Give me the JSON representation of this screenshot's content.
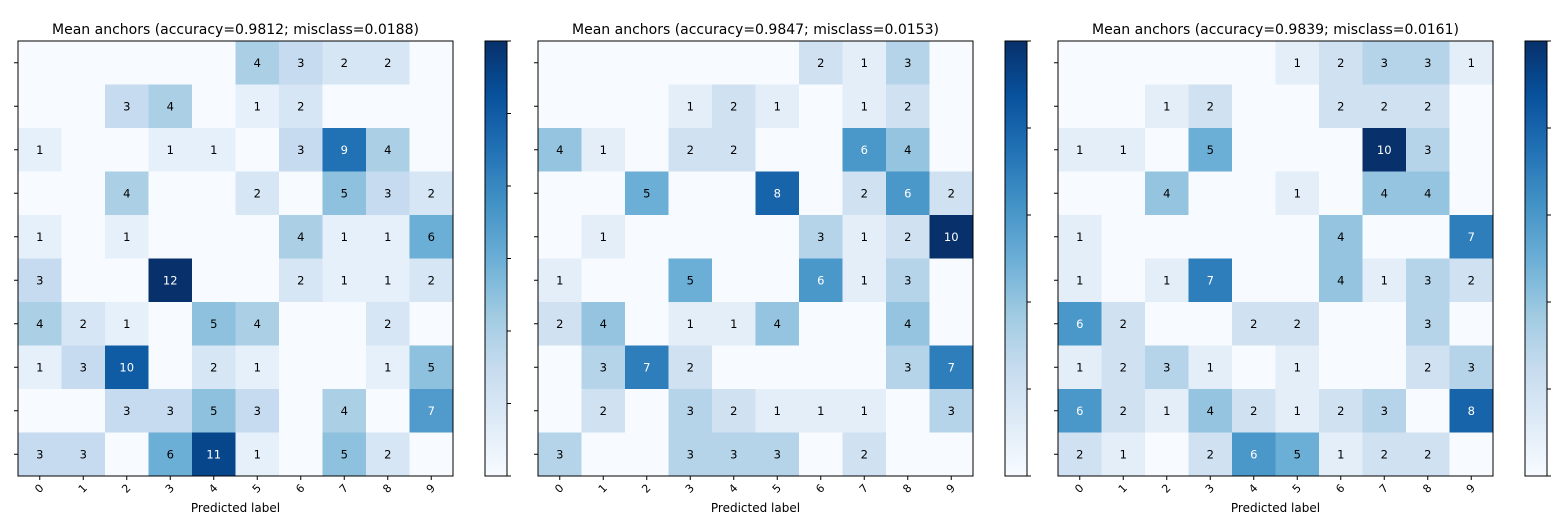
{
  "chart_data": [
    {
      "type": "heatmap",
      "title": "Mean anchors (accuracy=0.9812; misclass=0.0188)",
      "xlabel": "Predicted label",
      "ylabel": "",
      "x_ticks": [
        "0",
        "1",
        "2",
        "3",
        "4",
        "5",
        "6",
        "7",
        "8",
        "9"
      ],
      "y_ticks": [
        "",
        "",
        "",
        "",
        "",
        "",
        "",
        "",
        "",
        ""
      ],
      "colormap": "Blues",
      "grid": false,
      "values": [
        [
          0,
          0,
          0,
          0,
          0,
          4,
          3,
          2,
          2,
          0
        ],
        [
          0,
          0,
          3,
          4,
          0,
          1,
          2,
          0,
          0,
          0
        ],
        [
          1,
          0,
          0,
          1,
          1,
          0,
          3,
          9,
          4,
          0
        ],
        [
          0,
          0,
          4,
          0,
          0,
          2,
          0,
          5,
          3,
          2
        ],
        [
          1,
          0,
          1,
          0,
          0,
          0,
          4,
          1,
          1,
          6
        ],
        [
          3,
          0,
          0,
          12,
          0,
          0,
          2,
          1,
          1,
          2
        ],
        [
          4,
          2,
          1,
          0,
          5,
          4,
          0,
          0,
          2,
          0
        ],
        [
          1,
          3,
          10,
          0,
          2,
          1,
          0,
          0,
          1,
          5
        ],
        [
          0,
          0,
          3,
          3,
          5,
          3,
          0,
          4,
          0,
          7
        ],
        [
          3,
          3,
          0,
          6,
          11,
          1,
          0,
          5,
          2,
          0
        ]
      ]
    },
    {
      "type": "heatmap",
      "title": "Mean anchors (accuracy=0.9847; misclass=0.0153)",
      "xlabel": "Predicted label",
      "ylabel": "",
      "x_ticks": [
        "0",
        "1",
        "2",
        "3",
        "4",
        "5",
        "6",
        "7",
        "8",
        "9"
      ],
      "y_ticks": [
        "",
        "",
        "",
        "",
        "",
        "",
        "",
        "",
        "",
        ""
      ],
      "colormap": "Blues",
      "grid": false,
      "values": [
        [
          0,
          0,
          0,
          0,
          0,
          0,
          2,
          1,
          3,
          0
        ],
        [
          0,
          0,
          0,
          1,
          2,
          1,
          0,
          1,
          2,
          0
        ],
        [
          4,
          1,
          0,
          2,
          2,
          0,
          0,
          6,
          4,
          0
        ],
        [
          0,
          0,
          5,
          0,
          0,
          8,
          0,
          2,
          6,
          2
        ],
        [
          0,
          1,
          0,
          0,
          0,
          0,
          3,
          1,
          2,
          10
        ],
        [
          1,
          0,
          0,
          5,
          0,
          0,
          6,
          1,
          3,
          0
        ],
        [
          2,
          4,
          0,
          1,
          1,
          4,
          0,
          0,
          4,
          0
        ],
        [
          0,
          3,
          7,
          2,
          0,
          0,
          0,
          0,
          3,
          7
        ],
        [
          0,
          2,
          0,
          3,
          2,
          1,
          1,
          1,
          0,
          3
        ],
        [
          3,
          0,
          0,
          3,
          3,
          3,
          0,
          2,
          0,
          0
        ]
      ]
    },
    {
      "type": "heatmap",
      "title": "Mean anchors (accuracy=0.9839; misclass=0.0161)",
      "xlabel": "Predicted label",
      "ylabel": "",
      "x_ticks": [
        "0",
        "1",
        "2",
        "3",
        "4",
        "5",
        "6",
        "7",
        "8",
        "9"
      ],
      "y_ticks": [
        "",
        "",
        "",
        "",
        "",
        "",
        "",
        "",
        "",
        ""
      ],
      "colormap": "Blues",
      "grid": false,
      "values": [
        [
          0,
          0,
          0,
          0,
          0,
          1,
          2,
          3,
          3,
          1
        ],
        [
          0,
          0,
          1,
          2,
          0,
          0,
          2,
          2,
          2,
          0
        ],
        [
          1,
          1,
          0,
          5,
          0,
          0,
          0,
          10,
          3,
          0
        ],
        [
          0,
          0,
          4,
          0,
          0,
          1,
          0,
          4,
          4,
          0
        ],
        [
          1,
          0,
          0,
          0,
          0,
          0,
          4,
          0,
          0,
          7
        ],
        [
          1,
          0,
          1,
          7,
          0,
          0,
          4,
          1,
          3,
          2
        ],
        [
          6,
          2,
          0,
          0,
          2,
          2,
          0,
          0,
          3,
          0
        ],
        [
          1,
          2,
          3,
          1,
          0,
          1,
          0,
          0,
          2,
          3
        ],
        [
          6,
          2,
          1,
          4,
          2,
          1,
          2,
          3,
          0,
          8
        ],
        [
          2,
          1,
          0,
          2,
          6,
          5,
          1,
          2,
          2,
          0
        ]
      ]
    }
  ]
}
